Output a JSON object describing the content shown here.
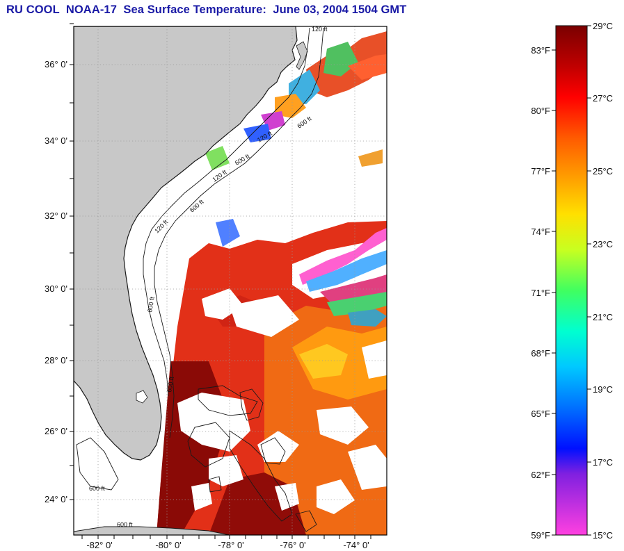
{
  "title": "RU COOL  NOAA-17  Sea Surface Temperature:  June 03, 2004 1504 GMT",
  "map": {
    "lon_range": [
      -83,
      -73
    ],
    "lat_range": [
      23,
      37
    ],
    "lat_labels": [
      "24° 0'",
      "26° 0'",
      "28° 0'",
      "30° 0'",
      "32° 0'",
      "34° 0'",
      "36° 0'"
    ],
    "lon_labels": [
      "-82° 0'",
      "-80° 0'",
      "-78° 0'",
      "-76° 0'",
      "-74° 0'"
    ],
    "contour_labels": [
      "120 ft",
      "600 ft",
      "120 ft",
      "600 ft",
      "120 ft",
      "600 ft",
      "120 ft",
      "600 ft",
      "600 ft",
      "600 ft",
      "600 ft"
    ]
  },
  "colorbar": {
    "range_c": [
      15,
      29
    ],
    "celsius_labels": [
      "29°C",
      "27°C",
      "25°C",
      "23°C",
      "21°C",
      "19°C",
      "17°C",
      "15°C"
    ],
    "fahrenheit_labels": [
      "83°F",
      "80°F",
      "77°F",
      "74°F",
      "71°F",
      "68°F",
      "65°F",
      "62°F",
      "59°F"
    ]
  },
  "colors": {
    "title": "#1a1aa6",
    "land": "#c8c8c8",
    "coast": "#1a1a1a",
    "grid": "#9a9a9a"
  }
}
